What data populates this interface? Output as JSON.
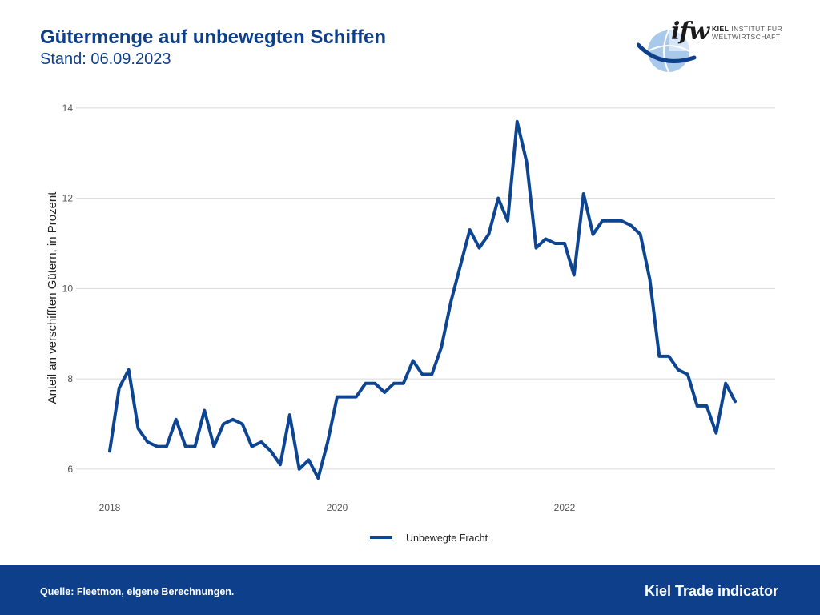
{
  "header": {
    "title": "Gütermenge auf unbewegten Schiffen",
    "subtitle": "Stand: 06.09.2023"
  },
  "logo": {
    "mark": "ifw",
    "line1_bold": "KIEL",
    "line1_rest": "INSTITUT FÜR",
    "line2": "WELTWIRTSCHAFT"
  },
  "footer": {
    "source": "Quelle: Fleetmon, eigene Berechnungen.",
    "brand": "Kiel Trade indicator"
  },
  "colors": {
    "accent": "#0d3f8b",
    "series": "#0d4593",
    "grid": "#d9d9d9"
  },
  "chart_data": {
    "type": "line",
    "ylabel": "Anteil an verschifften Gütern, in Prozent",
    "ylim": [
      5.5,
      14.3
    ],
    "yticks": [
      6,
      8,
      10,
      12,
      14
    ],
    "xticks": [
      "2018",
      "2020",
      "2022"
    ],
    "grid": "horizontal",
    "legend": "bottom",
    "series": [
      {
        "name": "Unbewegte Fracht",
        "x": [
          "2018-01",
          "2018-02",
          "2018-03",
          "2018-04",
          "2018-05",
          "2018-06",
          "2018-07",
          "2018-08",
          "2018-09",
          "2018-10",
          "2018-11",
          "2018-12",
          "2019-01",
          "2019-02",
          "2019-03",
          "2019-04",
          "2019-05",
          "2019-06",
          "2019-07",
          "2019-08",
          "2019-09",
          "2019-10",
          "2019-11",
          "2019-12",
          "2020-01",
          "2020-02",
          "2020-03",
          "2020-04",
          "2020-05",
          "2020-06",
          "2020-07",
          "2020-08",
          "2020-09",
          "2020-10",
          "2020-11",
          "2020-12",
          "2021-01",
          "2021-02",
          "2021-03",
          "2021-04",
          "2021-05",
          "2021-06",
          "2021-07",
          "2021-08",
          "2021-09",
          "2021-10",
          "2021-11",
          "2021-12",
          "2022-01",
          "2022-02",
          "2022-03",
          "2022-04",
          "2022-05",
          "2022-06",
          "2022-07",
          "2022-08",
          "2022-09",
          "2022-10",
          "2022-11",
          "2022-12",
          "2023-01",
          "2023-02",
          "2023-03",
          "2023-04",
          "2023-05",
          "2023-06",
          "2023-07"
        ],
        "values": [
          6.4,
          7.8,
          8.2,
          6.9,
          6.6,
          6.5,
          6.5,
          7.1,
          6.5,
          6.5,
          7.3,
          6.5,
          7.0,
          7.1,
          7.0,
          6.5,
          6.6,
          6.4,
          6.1,
          7.2,
          6.0,
          6.2,
          5.8,
          6.6,
          7.6,
          7.6,
          7.6,
          7.9,
          7.9,
          7.7,
          7.9,
          7.9,
          8.4,
          8.1,
          8.1,
          8.7,
          9.7,
          10.5,
          11.3,
          10.9,
          11.2,
          12.0,
          11.5,
          13.7,
          12.8,
          10.9,
          11.1,
          11.0,
          11.0,
          10.3,
          12.1,
          11.2,
          11.5,
          11.5,
          11.5,
          11.4,
          11.2,
          10.2,
          8.5,
          8.5,
          8.2,
          8.1,
          7.4,
          7.4,
          6.8,
          7.9,
          7.5
        ]
      }
    ]
  }
}
